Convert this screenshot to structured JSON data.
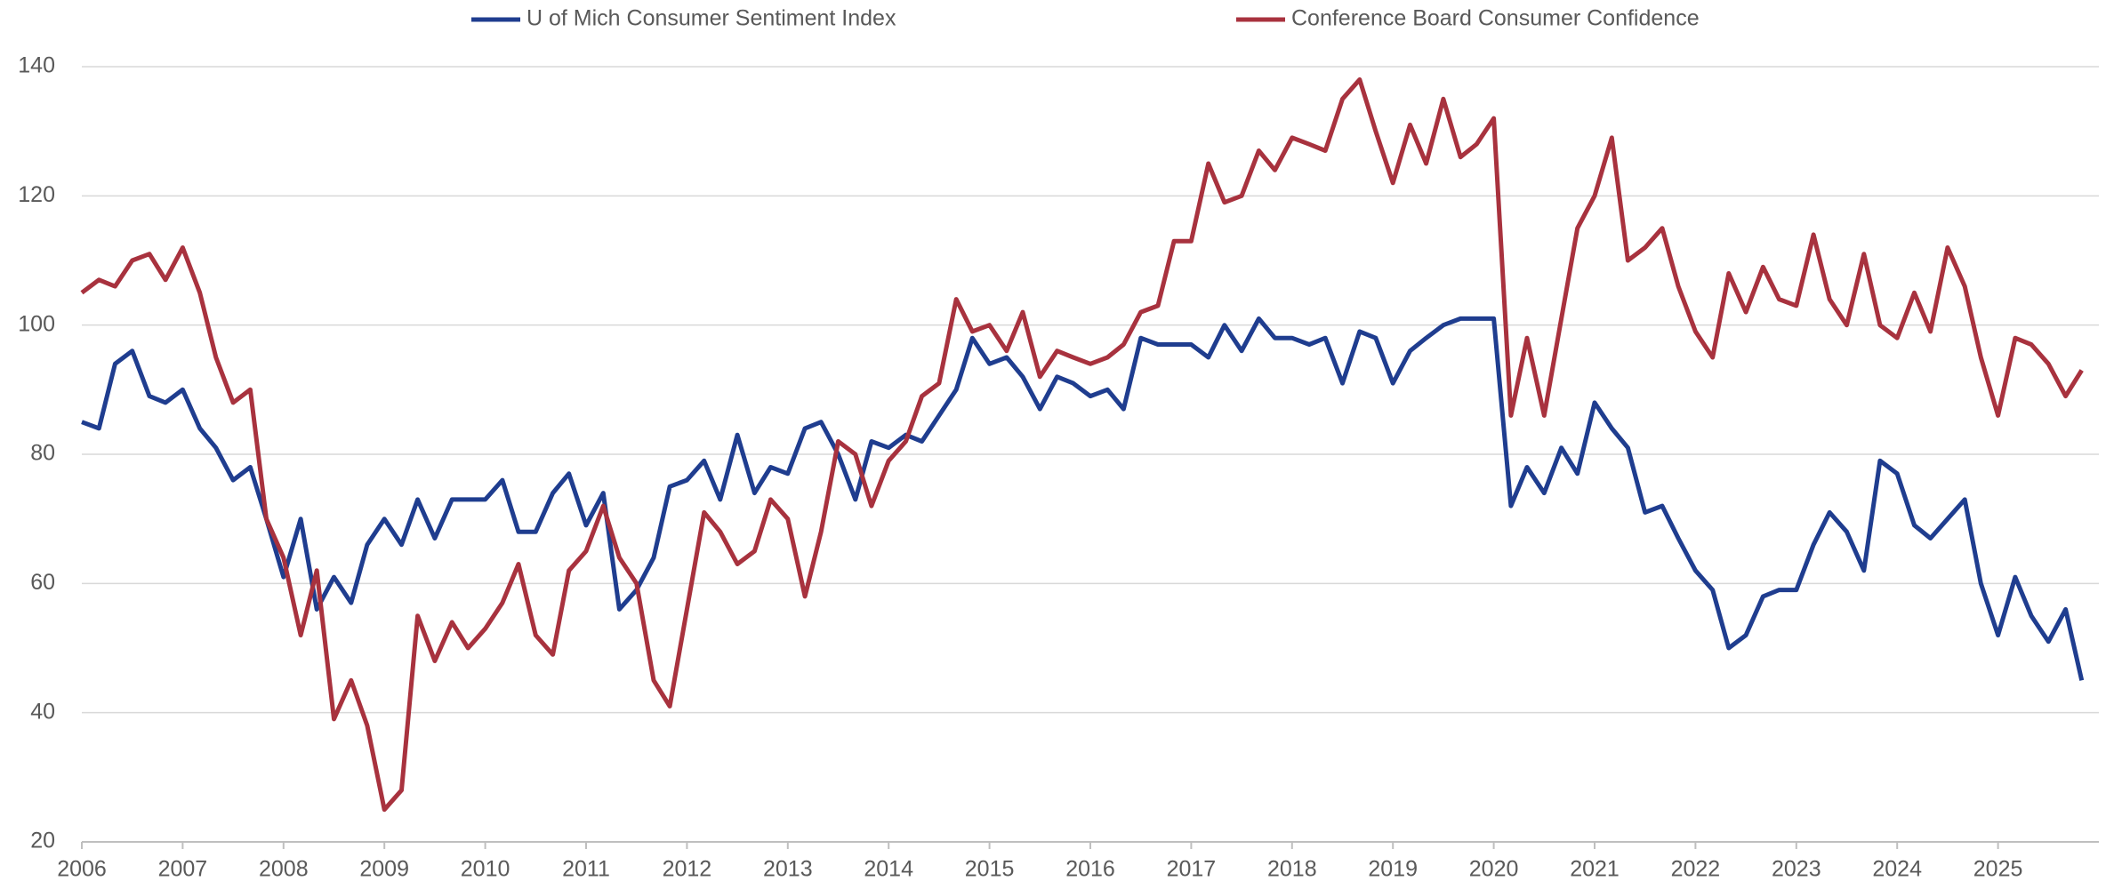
{
  "chart_data": {
    "type": "line",
    "x": [
      2006,
      2006.17,
      2006.33,
      2006.5,
      2006.67,
      2006.83,
      2007,
      2007.17,
      2007.33,
      2007.5,
      2007.67,
      2007.83,
      2008,
      2008.17,
      2008.33,
      2008.5,
      2008.67,
      2008.83,
      2009,
      2009.17,
      2009.33,
      2009.5,
      2009.67,
      2009.83,
      2010,
      2010.17,
      2010.33,
      2010.5,
      2010.67,
      2010.83,
      2011,
      2011.17,
      2011.33,
      2011.5,
      2011.67,
      2011.83,
      2012,
      2012.17,
      2012.33,
      2012.5,
      2012.67,
      2012.83,
      2013,
      2013.17,
      2013.33,
      2013.5,
      2013.67,
      2013.83,
      2014,
      2014.17,
      2014.33,
      2014.5,
      2014.67,
      2014.83,
      2015,
      2015.17,
      2015.33,
      2015.5,
      2015.67,
      2015.83,
      2016,
      2016.17,
      2016.33,
      2016.5,
      2016.67,
      2016.83,
      2017,
      2017.17,
      2017.33,
      2017.5,
      2017.67,
      2017.83,
      2018,
      2018.17,
      2018.33,
      2018.5,
      2018.67,
      2018.83,
      2019,
      2019.17,
      2019.33,
      2019.5,
      2019.67,
      2019.83,
      2020,
      2020.17,
      2020.33,
      2020.5,
      2020.67,
      2020.83,
      2021,
      2021.17,
      2021.33,
      2021.5,
      2021.67,
      2021.83,
      2022,
      2022.17,
      2022.33,
      2022.5,
      2022.67,
      2022.83,
      2023,
      2023.17,
      2023.33,
      2023.5,
      2023.67,
      2023.83,
      2024,
      2024.17,
      2024.33,
      2024.5,
      2024.67,
      2024.83,
      2025,
      2025.17,
      2025.33,
      2025.5,
      2025.67,
      2025.83
    ],
    "series": [
      {
        "name": "U of Mich Consumer Sentiment Index",
        "color": "#1f3d8f",
        "values": [
          85,
          84,
          94,
          96,
          89,
          88,
          90,
          84,
          81,
          76,
          78,
          70,
          61,
          70,
          56,
          61,
          57,
          66,
          70,
          66,
          73,
          67,
          73,
          73,
          73,
          76,
          68,
          68,
          74,
          77,
          69,
          74,
          56,
          59,
          64,
          75,
          76,
          79,
          73,
          83,
          74,
          78,
          77,
          84,
          85,
          80,
          73,
          82,
          81,
          83,
          82,
          86,
          90,
          98,
          94,
          95,
          92,
          87,
          92,
          91,
          89,
          90,
          87,
          98,
          97,
          97,
          97,
          95,
          100,
          96,
          101,
          98,
          98,
          97,
          98,
          91,
          99,
          98,
          91,
          96,
          98,
          100,
          101,
          101,
          101,
          72,
          78,
          74,
          81,
          77,
          88,
          84,
          81,
          71,
          72,
          67,
          62,
          59,
          50,
          52,
          58,
          59,
          59,
          66,
          71,
          68,
          62,
          79,
          77,
          69,
          67,
          70,
          73,
          60,
          52,
          61,
          55,
          51,
          56,
          45
        ]
      },
      {
        "name": "Conference Board Consumer Confidence",
        "color": "#a8323e",
        "values": [
          105,
          107,
          106,
          110,
          111,
          107,
          112,
          105,
          95,
          88,
          90,
          70,
          64,
          52,
          62,
          39,
          45,
          38,
          25,
          28,
          55,
          48,
          54,
          50,
          53,
          57,
          63,
          52,
          49,
          62,
          65,
          72,
          64,
          60,
          45,
          41,
          56,
          71,
          68,
          63,
          65,
          73,
          70,
          58,
          68,
          82,
          80,
          72,
          79,
          82,
          89,
          91,
          104,
          99,
          100,
          96,
          102,
          92,
          96,
          95,
          94,
          95,
          97,
          102,
          103,
          113,
          113,
          125,
          119,
          120,
          127,
          124,
          129,
          128,
          127,
          135,
          138,
          130,
          122,
          131,
          125,
          135,
          126,
          128,
          132,
          86,
          98,
          86,
          101,
          115,
          120,
          129,
          110,
          112,
          115,
          106,
          99,
          95,
          108,
          102,
          109,
          104,
          103,
          114,
          104,
          100,
          111,
          100,
          98,
          105,
          99,
          112,
          106,
          95,
          86,
          98,
          97,
          94,
          89,
          93
        ]
      }
    ],
    "xlim": [
      2006,
      2026
    ],
    "xticks": [
      2006,
      2007,
      2008,
      2009,
      2010,
      2011,
      2012,
      2013,
      2014,
      2015,
      2016,
      2017,
      2018,
      2019,
      2020,
      2021,
      2022,
      2023,
      2024,
      2025
    ],
    "ylim": [
      20,
      140
    ],
    "yticks": [
      20,
      40,
      60,
      80,
      100,
      120,
      140
    ],
    "grid": true,
    "legend": "top"
  }
}
